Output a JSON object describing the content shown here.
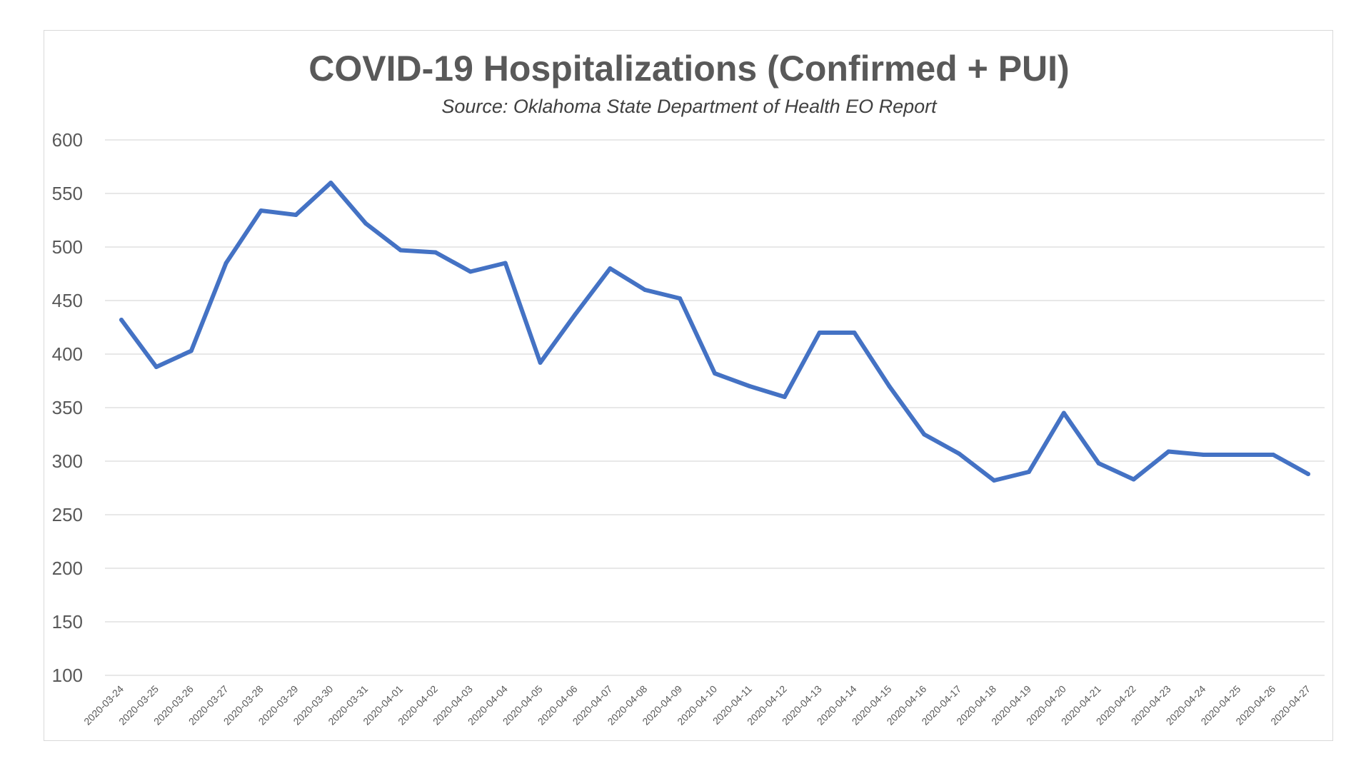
{
  "chart_data": {
    "type": "line",
    "title": "COVID-19 Hospitalizations (Confirmed + PUI)",
    "subtitle": "Source: Oklahoma State Department of Health EO Report",
    "xlabel": "",
    "ylabel": "",
    "ylim": [
      100,
      600
    ],
    "yticks": [
      100,
      150,
      200,
      250,
      300,
      350,
      400,
      450,
      500,
      550,
      600
    ],
    "grid": true,
    "legend": "none",
    "line_color": "#4472C4",
    "categories": [
      "2020-03-24",
      "2020-03-25",
      "2020-03-26",
      "2020-03-27",
      "2020-03-28",
      "2020-03-29",
      "2020-03-30",
      "2020-03-31",
      "2020-04-01",
      "2020-04-02",
      "2020-04-03",
      "2020-04-04",
      "2020-04-05",
      "2020-04-06",
      "2020-04-07",
      "2020-04-08",
      "2020-04-09",
      "2020-04-10",
      "2020-04-11",
      "2020-04-12",
      "2020-04-13",
      "2020-04-14",
      "2020-04-15",
      "2020-04-16",
      "2020-04-17",
      "2020-04-18",
      "2020-04-19",
      "2020-04-20",
      "2020-04-21",
      "2020-04-22",
      "2020-04-23",
      "2020-04-24",
      "2020-04-25",
      "2020-04-26",
      "2020-04-27"
    ],
    "series": [
      {
        "name": "",
        "values": [
          432,
          388,
          403,
          485,
          534,
          530,
          560,
          522,
          497,
          495,
          477,
          485,
          392,
          437,
          480,
          460,
          452,
          382,
          370,
          360,
          420,
          420,
          370,
          325,
          307,
          282,
          290,
          345,
          298,
          283,
          309,
          306,
          306,
          306,
          288
        ]
      }
    ]
  }
}
